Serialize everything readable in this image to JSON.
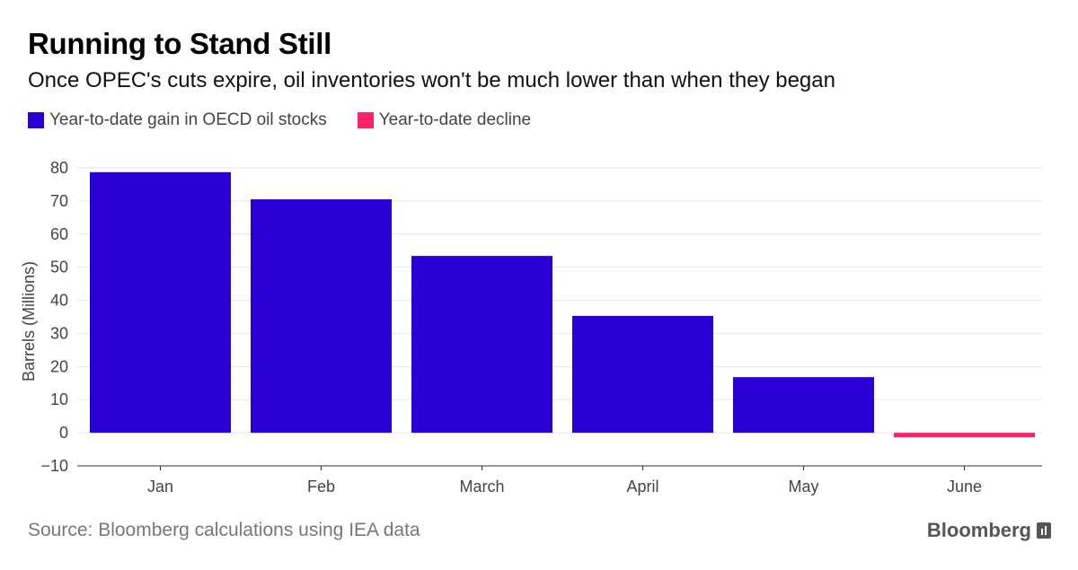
{
  "header": {
    "title": "Running to Stand Still",
    "subtitle": "Once OPEC's cuts expire, oil inventories won't be much lower than when they began"
  },
  "legend": {
    "items": [
      {
        "label": "Year-to-date gain in OECD oil stocks",
        "color": "#2b00d6"
      },
      {
        "label": "Year-to-date decline",
        "color": "#ff2266"
      }
    ]
  },
  "footer": {
    "source": "Source: Bloomberg calculations using IEA data",
    "brand": "Bloomberg"
  },
  "chart_data": {
    "type": "bar",
    "title": "Running to Stand Still",
    "subtitle": "Once OPEC's cuts expire, oil inventories won't be much lower than when they began",
    "categories": [
      "Jan",
      "Feb",
      "March",
      "April",
      "May",
      "June"
    ],
    "values": [
      78.7,
      70.5,
      53.4,
      35.3,
      16.8,
      -1.2
    ],
    "positive_color": "#2b00d6",
    "negative_color": "#ff2266",
    "xlabel": "",
    "ylabel": "Barrels (Millions)",
    "ylim": [
      -10,
      80
    ],
    "yticks": [
      80,
      70,
      60,
      50,
      40,
      30,
      20,
      10,
      0,
      -10
    ],
    "grid": true,
    "legend_position": "top-left"
  }
}
